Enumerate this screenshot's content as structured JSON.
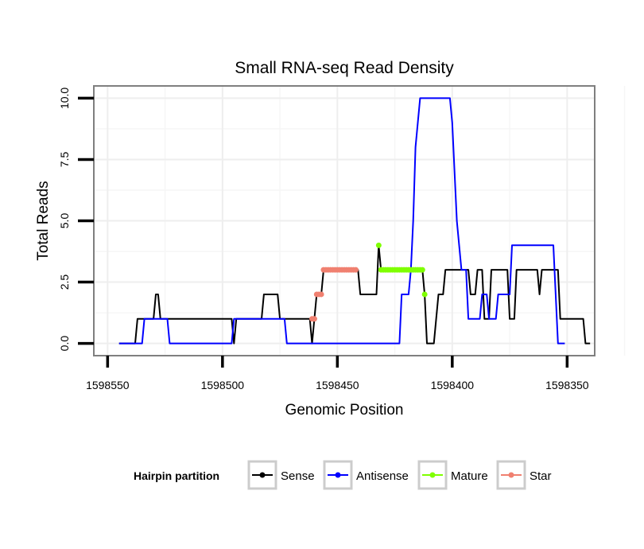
{
  "chart_data": {
    "type": "line",
    "title": "Small RNA-seq Read Density",
    "xlabel": "Genomic Position",
    "ylabel": "Total Reads",
    "x_reversed": true,
    "xlim": [
      1598556,
      1598338
    ],
    "ylim": [
      -0.5,
      10.5
    ],
    "x_ticks": [
      1598550,
      1598500,
      1598450,
      1598400,
      1598350
    ],
    "x_tick_labels": [
      "1598550",
      "1598500",
      "1598450",
      "1598400",
      "1598350"
    ],
    "y_ticks": [
      0,
      2.5,
      5,
      7.5,
      10
    ],
    "y_tick_labels": [
      "0.0",
      "2.5",
      "5.0",
      "7.5",
      "10.0"
    ],
    "grid": true,
    "legend": {
      "title": "Hairpin partition",
      "position": "bottom",
      "entries": [
        "Sense",
        "Antisense",
        "Mature",
        "Star"
      ]
    },
    "series": [
      {
        "name": "Sense",
        "color": "#000000",
        "style": "line",
        "points": [
          [
            1598545,
            0
          ],
          [
            1598538,
            0
          ],
          [
            1598537,
            1
          ],
          [
            1598530,
            1
          ],
          [
            1598529,
            2
          ],
          [
            1598528,
            2
          ],
          [
            1598527,
            1
          ],
          [
            1598496,
            1
          ],
          [
            1598495,
            0
          ],
          [
            1598494,
            1
          ],
          [
            1598483,
            1
          ],
          [
            1598482,
            2
          ],
          [
            1598476,
            2
          ],
          [
            1598475,
            1
          ],
          [
            1598462,
            1
          ],
          [
            1598461,
            0
          ],
          [
            1598460,
            1
          ],
          [
            1598459,
            2
          ],
          [
            1598457,
            2
          ],
          [
            1598456,
            3
          ],
          [
            1598441,
            3
          ],
          [
            1598440,
            2
          ],
          [
            1598433,
            2
          ],
          [
            1598432,
            4
          ],
          [
            1598431,
            3
          ],
          [
            1598413,
            3
          ],
          [
            1598412,
            2
          ],
          [
            1598411,
            0
          ],
          [
            1598408,
            0
          ],
          [
            1598407,
            1
          ],
          [
            1598406,
            2
          ],
          [
            1598404,
            2
          ],
          [
            1598403,
            3
          ],
          [
            1598393,
            3
          ],
          [
            1598392,
            2
          ],
          [
            1598390,
            2
          ],
          [
            1598389,
            3
          ],
          [
            1598387,
            3
          ],
          [
            1598386,
            1
          ],
          [
            1598384,
            1
          ],
          [
            1598383,
            3
          ],
          [
            1598376,
            3
          ],
          [
            1598375,
            1
          ],
          [
            1598373,
            1
          ],
          [
            1598372,
            3
          ],
          [
            1598363,
            3
          ],
          [
            1598362,
            2
          ],
          [
            1598361,
            3
          ],
          [
            1598354,
            3
          ],
          [
            1598353,
            1
          ],
          [
            1598343,
            1
          ],
          [
            1598342,
            0
          ],
          [
            1598340,
            0
          ]
        ]
      },
      {
        "name": "Antisense",
        "color": "#0000ff",
        "style": "line",
        "points": [
          [
            1598545,
            0
          ],
          [
            1598535,
            0
          ],
          [
            1598534,
            1
          ],
          [
            1598524,
            1
          ],
          [
            1598523,
            0
          ],
          [
            1598497,
            0
          ],
          [
            1598496,
            0
          ],
          [
            1598495,
            1
          ],
          [
            1598483,
            1
          ],
          [
            1598482,
            1
          ],
          [
            1598479,
            1
          ],
          [
            1598478,
            1
          ],
          [
            1598473,
            1
          ],
          [
            1598472,
            0
          ],
          [
            1598423,
            0
          ],
          [
            1598422,
            2
          ],
          [
            1598419,
            2
          ],
          [
            1598418,
            3
          ],
          [
            1598417,
            5
          ],
          [
            1598416,
            8
          ],
          [
            1598415,
            9
          ],
          [
            1598414,
            10
          ],
          [
            1598401,
            10
          ],
          [
            1598400,
            9
          ],
          [
            1598399,
            7
          ],
          [
            1598398,
            5
          ],
          [
            1598397,
            4
          ],
          [
            1598396,
            3
          ],
          [
            1598394,
            3
          ],
          [
            1598393,
            1
          ],
          [
            1598388,
            1
          ],
          [
            1598387,
            2
          ],
          [
            1598385,
            2
          ],
          [
            1598384,
            1
          ],
          [
            1598381,
            1
          ],
          [
            1598380,
            2
          ],
          [
            1598375,
            2
          ],
          [
            1598374,
            4
          ],
          [
            1598356,
            4
          ],
          [
            1598355,
            2
          ],
          [
            1598354,
            0
          ],
          [
            1598351,
            0
          ]
        ]
      },
      {
        "name": "Mature",
        "color": "#7fff00",
        "style": "points",
        "points": [
          [
            1598432,
            4
          ],
          [
            1598431,
            3
          ],
          [
            1598430,
            3
          ],
          [
            1598429,
            3
          ],
          [
            1598428,
            3
          ],
          [
            1598427,
            3
          ],
          [
            1598426,
            3
          ],
          [
            1598425,
            3
          ],
          [
            1598424,
            3
          ],
          [
            1598423,
            3
          ],
          [
            1598422,
            3
          ],
          [
            1598421,
            3
          ],
          [
            1598420,
            3
          ],
          [
            1598419,
            3
          ],
          [
            1598418,
            3
          ],
          [
            1598417,
            3
          ],
          [
            1598416,
            3
          ],
          [
            1598415,
            3
          ],
          [
            1598414,
            3
          ],
          [
            1598413,
            3
          ],
          [
            1598412,
            2
          ]
        ]
      },
      {
        "name": "Star",
        "color": "#f08070",
        "style": "points",
        "points": [
          [
            1598461,
            1
          ],
          [
            1598460,
            1
          ],
          [
            1598459,
            2
          ],
          [
            1598458,
            2
          ],
          [
            1598457,
            2
          ],
          [
            1598456,
            3
          ],
          [
            1598455,
            3
          ],
          [
            1598454,
            3
          ],
          [
            1598453,
            3
          ],
          [
            1598452,
            3
          ],
          [
            1598451,
            3
          ],
          [
            1598450,
            3
          ],
          [
            1598449,
            3
          ],
          [
            1598448,
            3
          ],
          [
            1598447,
            3
          ],
          [
            1598446,
            3
          ],
          [
            1598445,
            3
          ],
          [
            1598444,
            3
          ],
          [
            1598443,
            3
          ],
          [
            1598442,
            3
          ]
        ]
      }
    ]
  }
}
